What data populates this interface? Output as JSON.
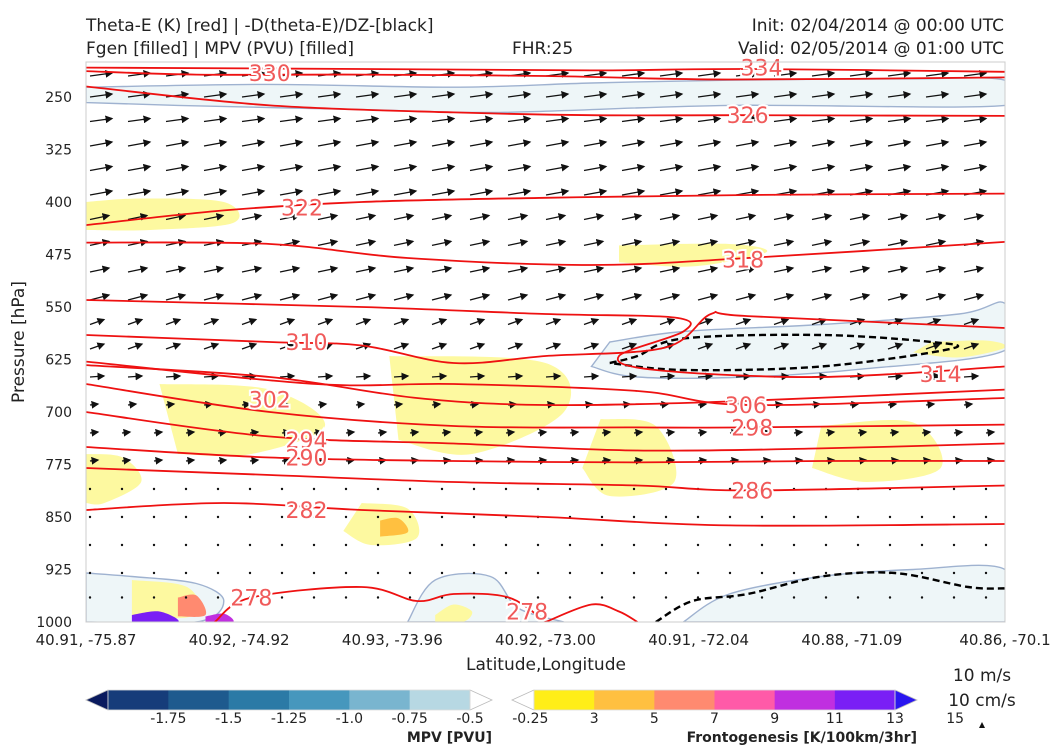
{
  "header": {
    "line1_left": "Theta-E (K) [red] | -D(theta-E)/DZ-[black]",
    "line2_left": "Fgen [filled] | MPV (PVU) [filled]",
    "fhr": "FHR:25",
    "init": "Init: 02/04/2014 @ 00:00 UTC",
    "valid": "Valid: 02/05/2014 @ 01:00 UTC"
  },
  "chart_data": {
    "type": "cross-section",
    "xlabel": "Latitude,Longitude",
    "ylabel": "Pressure [hPa]",
    "ylim": [
      1000,
      200
    ],
    "x_ticks": [
      "40.91, -75.87",
      "40.92, -74.92",
      "40.93, -73.96",
      "40.92, -73.00",
      "40.91, -72.04",
      "40.88, -71.09",
      "40.86, -70.1"
    ],
    "y_ticks": [
      250,
      325,
      400,
      475,
      550,
      625,
      700,
      775,
      850,
      925,
      1000
    ],
    "theta_e_contours": [
      {
        "label": "334",
        "points": [
          [
            0,
            208
          ],
          [
            0.3,
            210
          ],
          [
            0.55,
            212
          ],
          [
            0.72,
            210
          ],
          [
            1.0,
            214
          ]
        ],
        "label_at": [
          0.735,
          208
        ]
      },
      {
        "label": "330",
        "points": [
          [
            0,
            213
          ],
          [
            0.12,
            218
          ],
          [
            0.3,
            218
          ],
          [
            0.5,
            220
          ],
          [
            0.7,
            225
          ],
          [
            1.0,
            222
          ]
        ],
        "label_at": [
          0.2,
          216
        ]
      },
      {
        "label": "326",
        "points": [
          [
            0,
            235
          ],
          [
            0.2,
            262
          ],
          [
            0.4,
            272
          ],
          [
            0.55,
            276
          ],
          [
            0.72,
            276
          ],
          [
            1.0,
            277
          ]
        ],
        "label_at": [
          0.72,
          276
        ]
      },
      {
        "label": "322",
        "points": [
          [
            0,
            433
          ],
          [
            0.15,
            412
          ],
          [
            0.3,
            400
          ],
          [
            0.5,
            394
          ],
          [
            0.72,
            390
          ],
          [
            1.0,
            388
          ]
        ],
        "label_at": [
          0.235,
          408
        ]
      },
      {
        "label": "318",
        "points": [
          [
            0,
            458
          ],
          [
            0.2,
            460
          ],
          [
            0.35,
            480
          ],
          [
            0.55,
            490
          ],
          [
            0.72,
            480
          ],
          [
            1.0,
            457
          ]
        ],
        "label_at": [
          0.715,
          482
        ]
      },
      {
        "label": "310",
        "points": [
          [
            0,
            590
          ],
          [
            0.2,
            600
          ],
          [
            0.3,
            605
          ],
          [
            0.4,
            630
          ],
          [
            0.5,
            620
          ],
          [
            0.63,
            608
          ],
          [
            0.68,
            560
          ],
          [
            0.72,
            563
          ],
          [
            1.0,
            580
          ]
        ],
        "label_at": [
          0.24,
          600
        ]
      },
      {
        "label": "314",
        "points": [
          [
            0,
            540
          ],
          [
            0.3,
            550
          ],
          [
            0.5,
            560
          ],
          [
            0.64,
            565
          ],
          [
            0.65,
            585
          ],
          [
            0.58,
            620
          ],
          [
            0.62,
            640
          ],
          [
            0.8,
            650
          ],
          [
            1.0,
            635
          ]
        ],
        "label_at": [
          0.93,
          646
        ]
      },
      {
        "label": "302",
        "points": [
          [
            0,
            633
          ],
          [
            0.2,
            650
          ],
          [
            0.36,
            680
          ],
          [
            0.5,
            690
          ],
          [
            0.7,
            685
          ],
          [
            1.0,
            668
          ]
        ],
        "label_at": [
          0.2,
          682
        ]
      },
      {
        "label": "306",
        "points": [
          [
            0,
            628
          ],
          [
            0.25,
            660
          ],
          [
            0.4,
            660
          ],
          [
            0.6,
            670
          ],
          [
            0.72,
            690
          ],
          [
            1.0,
            680
          ]
        ],
        "label_at": [
          0.718,
          690
        ]
      },
      {
        "label": "298",
        "points": [
          [
            0,
            660
          ],
          [
            0.2,
            700
          ],
          [
            0.4,
            720
          ],
          [
            0.6,
            722
          ],
          [
            0.72,
            722
          ],
          [
            1.0,
            718
          ]
        ],
        "label_at": [
          0.725,
          722
        ]
      },
      {
        "label": "294",
        "points": [
          [
            0,
            700
          ],
          [
            0.2,
            735
          ],
          [
            0.4,
            745
          ],
          [
            0.6,
            755
          ],
          [
            0.8,
            752
          ],
          [
            1.0,
            745
          ]
        ],
        "label_at": [
          0.24,
          740
        ]
      },
      {
        "label": "290",
        "points": [
          [
            0,
            750
          ],
          [
            0.2,
            765
          ],
          [
            0.4,
            770
          ],
          [
            0.6,
            772
          ],
          [
            0.8,
            770
          ],
          [
            1.0,
            770
          ]
        ],
        "label_at": [
          0.24,
          765
        ]
      },
      {
        "label": "286",
        "points": [
          [
            0,
            780
          ],
          [
            0.2,
            790
          ],
          [
            0.4,
            800
          ],
          [
            0.6,
            805
          ],
          [
            0.72,
            812
          ],
          [
            1.0,
            805
          ]
        ],
        "label_at": [
          0.725,
          812
        ]
      },
      {
        "label": "282",
        "points": [
          [
            0,
            840
          ],
          [
            0.15,
            830
          ],
          [
            0.3,
            840
          ],
          [
            0.5,
            850
          ],
          [
            0.7,
            862
          ],
          [
            1.0,
            860
          ]
        ],
        "label_at": [
          0.24,
          840
        ]
      },
      {
        "label": "278",
        "points": [
          [
            0.14,
            1000
          ],
          [
            0.18,
            965
          ],
          [
            0.3,
            950
          ],
          [
            0.36,
            970
          ],
          [
            0.4,
            960
          ],
          [
            0.46,
            965
          ],
          [
            0.5,
            1000
          ]
        ],
        "label_at": [
          0.18,
          965
        ]
      },
      {
        "label": "278",
        "points": [
          [
            0.5,
            1000
          ],
          [
            0.55,
            975
          ],
          [
            0.58,
            985
          ],
          [
            0.6,
            1000
          ]
        ],
        "label_at": [
          0.48,
          985
        ]
      }
    ],
    "dashed_black_contours": [
      [
        [
          0.57,
          630
        ],
        [
          0.6,
          620
        ],
        [
          0.65,
          595
        ],
        [
          0.8,
          590
        ],
        [
          0.92,
          600
        ],
        [
          0.94,
          610
        ],
        [
          0.8,
          635
        ],
        [
          0.65,
          640
        ],
        [
          0.57,
          630
        ]
      ],
      [
        [
          0.62,
          1000
        ],
        [
          0.66,
          970
        ],
        [
          0.72,
          960
        ],
        [
          0.8,
          935
        ],
        [
          0.88,
          930
        ],
        [
          0.96,
          950
        ],
        [
          1.0,
          952
        ]
      ]
    ],
    "mpv_colorbar": {
      "label": "MPV [PVU]",
      "ticks": [
        "-1.75",
        "-1.5",
        "-1.25",
        "-1.0",
        "-0.75",
        "-0.5",
        "-0.25"
      ],
      "colors": [
        "#0a1a5e",
        "#163c7a",
        "#1e5a8e",
        "#2b7aa6",
        "#4697bd",
        "#79b5cf",
        "#b7d8e3",
        "#ffffff"
      ]
    },
    "fgen_colorbar": {
      "label": "Frontogenesis [K/100km/3hr]",
      "ticks": [
        "3",
        "5",
        "7",
        "9",
        "11",
        "13",
        "15"
      ],
      "colors": [
        "#ffffff",
        "#ffee18",
        "#ffc040",
        "#ff8a70",
        "#ff5aa8",
        "#c02fe0",
        "#7a1ff5",
        "#2a16f0"
      ]
    },
    "wind_legend": {
      "label1": "10 m/s",
      "label2": "10 cm/s"
    }
  }
}
